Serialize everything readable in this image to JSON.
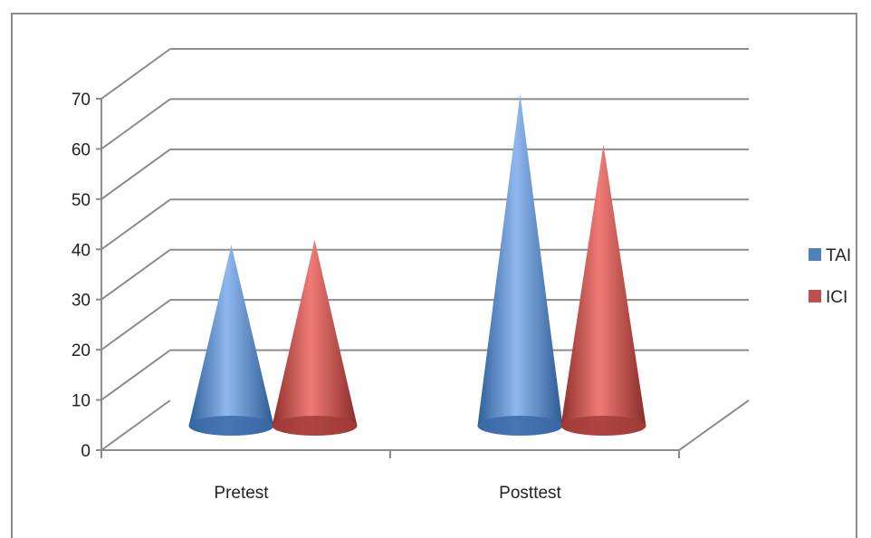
{
  "chart_data": {
    "type": "bar",
    "style": "3d-cone",
    "categories": [
      "Pretest",
      "Posttest"
    ],
    "series": [
      {
        "name": "TAI",
        "values": [
          36,
          66
        ],
        "color": "#4f81bd"
      },
      {
        "name": "ICI",
        "values": [
          37,
          56
        ],
        "color": "#c0504d"
      }
    ],
    "yticks": [
      0,
      10,
      20,
      30,
      40,
      50,
      60,
      70
    ],
    "ylim": [
      0,
      70
    ],
    "grid": true,
    "legend_position": "right"
  }
}
